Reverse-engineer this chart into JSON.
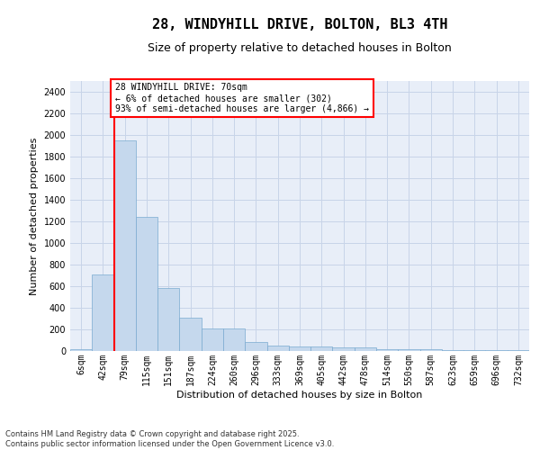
{
  "title_line1": "28, WINDYHILL DRIVE, BOLTON, BL3 4TH",
  "title_line2": "Size of property relative to detached houses in Bolton",
  "xlabel": "Distribution of detached houses by size in Bolton",
  "ylabel": "Number of detached properties",
  "categories": [
    "6sqm",
    "42sqm",
    "79sqm",
    "115sqm",
    "151sqm",
    "187sqm",
    "224sqm",
    "260sqm",
    "296sqm",
    "333sqm",
    "369sqm",
    "405sqm",
    "442sqm",
    "478sqm",
    "514sqm",
    "550sqm",
    "587sqm",
    "623sqm",
    "659sqm",
    "696sqm",
    "732sqm"
  ],
  "values": [
    15,
    710,
    1950,
    1240,
    580,
    305,
    205,
    205,
    85,
    48,
    38,
    38,
    35,
    35,
    20,
    20,
    20,
    5,
    5,
    5,
    5
  ],
  "bar_color": "#c5d8ed",
  "bar_edgecolor": "#7aaad0",
  "grid_color": "#c8d4e8",
  "bg_color": "#e8eef8",
  "vline_color": "red",
  "annotation_text": "28 WINDYHILL DRIVE: 70sqm\n← 6% of detached houses are smaller (302)\n93% of semi-detached houses are larger (4,866) →",
  "annotation_box_color": "white",
  "annotation_box_edgecolor": "red",
  "footnote": "Contains HM Land Registry data © Crown copyright and database right 2025.\nContains public sector information licensed under the Open Government Licence v3.0.",
  "ylim": [
    0,
    2500
  ],
  "yticks": [
    0,
    200,
    400,
    600,
    800,
    1000,
    1200,
    1400,
    1600,
    1800,
    2000,
    2200,
    2400
  ],
  "title_fontsize": 11,
  "subtitle_fontsize": 9,
  "axis_label_fontsize": 8,
  "tick_fontsize": 7,
  "annotation_fontsize": 7,
  "footnote_fontsize": 6
}
